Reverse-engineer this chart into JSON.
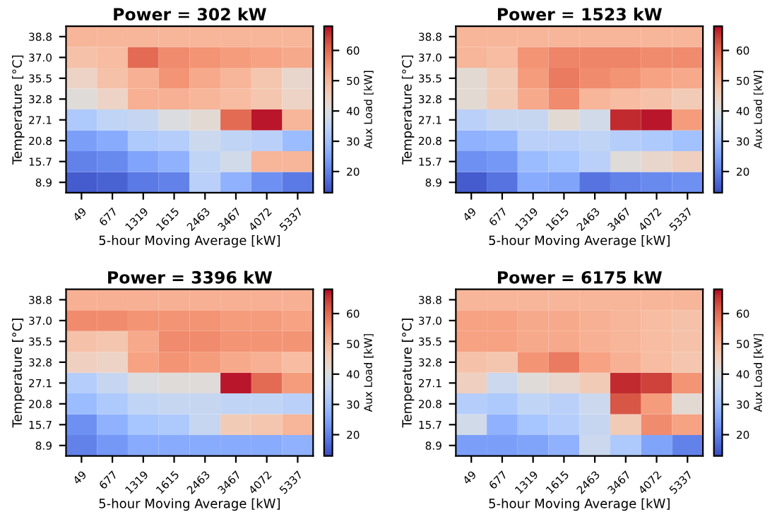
{
  "chart_data": [
    {
      "type": "heatmap",
      "title": "Power = 302 kW",
      "xlabel": "5-hour Moving Average [kW]",
      "ylabel": "Temperature [°C]",
      "clabel": "Aux Load [kW]",
      "categories": [
        "49",
        "677",
        "1319",
        "1615",
        "2463",
        "3467",
        "4072",
        "5337"
      ],
      "y_categories": [
        "38.8",
        "37.0",
        "35.5",
        "32.8",
        "27.1",
        "20.8",
        "15.7",
        "8.9"
      ],
      "cells": [
        [
          50,
          50,
          50,
          50,
          50,
          50,
          50,
          50
        ],
        [
          48,
          49,
          60,
          56,
          55,
          54,
          53,
          52
        ],
        [
          44,
          48,
          51,
          55,
          52,
          50,
          47,
          43
        ],
        [
          41,
          44,
          51,
          51,
          50,
          49,
          47,
          44
        ],
        [
          32,
          35,
          36,
          40,
          42,
          60,
          67,
          50
        ],
        [
          24,
          26,
          32,
          33,
          37,
          35,
          34,
          29
        ],
        [
          20,
          21,
          25,
          27,
          35,
          38,
          50,
          50
        ],
        [
          15,
          16,
          19,
          20,
          34,
          27,
          22,
          19
        ]
      ],
      "clim": [
        13,
        68
      ],
      "cticks": [
        20,
        30,
        40,
        50,
        60
      ]
    },
    {
      "type": "heatmap",
      "title": "Power = 1523 kW",
      "xlabel": "5-hour Moving Average [kW]",
      "ylabel": "Temperature [°C]",
      "clabel": "Aux Load [kW]",
      "categories": [
        "49",
        "677",
        "1319",
        "1615",
        "2463",
        "3467",
        "4072",
        "5337"
      ],
      "y_categories": [
        "38.8",
        "37.0",
        "35.5",
        "32.8",
        "27.1",
        "20.8",
        "15.7",
        "8.9"
      ],
      "cells": [
        [
          50,
          50,
          50,
          50,
          50,
          50,
          50,
          50
        ],
        [
          50,
          49,
          55,
          57,
          57,
          57,
          56,
          56
        ],
        [
          42,
          46,
          54,
          58,
          56,
          55,
          53,
          52
        ],
        [
          42,
          46,
          52,
          56,
          50,
          49,
          48,
          46
        ],
        [
          34,
          36,
          36,
          42,
          38,
          66,
          67,
          54
        ],
        [
          27,
          28,
          34,
          34,
          35,
          33,
          32,
          30
        ],
        [
          22,
          23,
          29,
          31,
          34,
          41,
          43,
          45
        ],
        [
          15,
          18,
          26,
          25,
          18,
          20,
          21,
          22
        ]
      ],
      "clim": [
        13,
        68
      ],
      "cticks": [
        20,
        30,
        40,
        50,
        60
      ]
    },
    {
      "type": "heatmap",
      "title": "Power = 3396 kW",
      "xlabel": "5-hour Moving Average [kW]",
      "ylabel": "Temperature [°C]",
      "clabel": "Aux Load [kW]",
      "categories": [
        "49",
        "677",
        "1319",
        "1615",
        "2463",
        "3467",
        "4072",
        "5337"
      ],
      "y_categories": [
        "38.8",
        "37.0",
        "35.5",
        "32.8",
        "27.1",
        "20.8",
        "15.7",
        "8.9"
      ],
      "cells": [
        [
          51,
          51,
          51,
          51,
          51,
          51,
          51,
          51
        ],
        [
          56,
          56,
          55,
          55,
          55,
          54,
          54,
          53
        ],
        [
          48,
          47,
          52,
          56,
          56,
          55,
          55,
          55
        ],
        [
          45,
          44,
          53,
          55,
          54,
          52,
          51,
          49
        ],
        [
          33,
          36,
          40,
          41,
          41,
          67,
          60,
          54
        ],
        [
          29,
          32,
          35,
          36,
          36,
          35,
          35,
          34
        ],
        [
          22,
          27,
          31,
          32,
          36,
          46,
          47,
          50
        ],
        [
          20,
          23,
          26,
          26,
          26,
          26,
          26,
          27
        ]
      ],
      "clim": [
        13,
        68
      ],
      "cticks": [
        20,
        30,
        40,
        50,
        60
      ]
    },
    {
      "type": "heatmap",
      "title": "Power = 6175 kW",
      "xlabel": "5-hour Moving Average [kW]",
      "ylabel": "Temperature [°C]",
      "clabel": "Aux Load [kW]",
      "categories": [
        "49",
        "677",
        "1319",
        "1615",
        "2463",
        "3467",
        "4072",
        "5337"
      ],
      "y_categories": [
        "38.8",
        "37.0",
        "35.5",
        "32.8",
        "27.1",
        "20.8",
        "15.7",
        "8.9"
      ],
      "cells": [
        [
          50,
          50,
          50,
          50,
          50,
          50,
          50,
          50
        ],
        [
          53,
          53,
          52,
          52,
          51,
          50,
          49,
          48
        ],
        [
          53,
          53,
          52,
          52,
          51,
          50,
          49,
          48
        ],
        [
          48,
          47,
          55,
          58,
          53,
          51,
          49,
          47
        ],
        [
          45,
          37,
          41,
          43,
          46,
          66,
          64,
          55
        ],
        [
          33,
          32,
          35,
          34,
          37,
          62,
          54,
          42
        ],
        [
          38,
          27,
          31,
          33,
          36,
          46,
          56,
          53
        ],
        [
          24,
          24,
          25,
          27,
          37,
          32,
          25,
          20
        ]
      ],
      "clim": [
        13,
        68
      ],
      "cticks": [
        20,
        30,
        40,
        50,
        60
      ]
    }
  ]
}
